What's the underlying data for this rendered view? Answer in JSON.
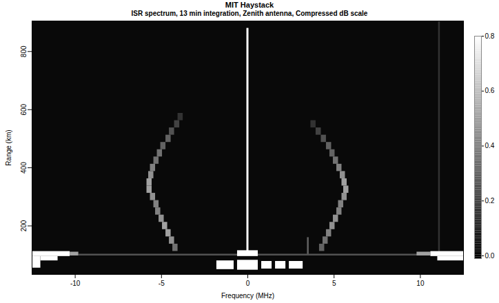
{
  "chart_data": {
    "type": "heatmap",
    "title": "MIT Haystack",
    "subtitle": "ISR spectrum, 13 min integration, Zenith antenna, Compressed dB scale",
    "x_label": "Frequency (MHz)",
    "y_label": "Range (km)",
    "xlim": [
      -12.5,
      12.5
    ],
    "ylim": [
      33,
      905
    ],
    "xticks": [
      -10,
      -5,
      0,
      5,
      10
    ],
    "yticks": [
      200,
      400,
      600,
      800
    ],
    "colorbar": {
      "range": [
        -0.01,
        0.8
      ],
      "ticks": [
        {
          "value": 0,
          "label": "0.0"
        },
        {
          "value": 0.2,
          "label": "0.2"
        },
        {
          "value": 0.4,
          "label": "0.4"
        },
        {
          "value": 0.6,
          "label": "0.6"
        },
        {
          "value": 0.8,
          "label": "0.8"
        }
      ]
    },
    "cells": [
      [
        -12.5,
        12.5,
        33,
        905,
        0.02
      ],
      [
        -0.06,
        0.06,
        100,
        880,
        0.8
      ],
      [
        3.45,
        3.55,
        100,
        160,
        0.3
      ],
      [
        11.05,
        11.15,
        100,
        905,
        0.15
      ],
      [
        -4.05,
        -3.75,
        562.5,
        587.5,
        0.15
      ],
      [
        -4.25,
        -3.95,
        537.5,
        562.5,
        0.2
      ],
      [
        -4.55,
        -4.25,
        512.5,
        537.5,
        0.25
      ],
      [
        -4.75,
        -4.45,
        487.5,
        512.5,
        0.3
      ],
      [
        -5.05,
        -4.75,
        462.5,
        487.5,
        0.3
      ],
      [
        -5.25,
        -4.95,
        437.5,
        462.5,
        0.35
      ],
      [
        -5.45,
        -5.15,
        412.5,
        437.5,
        0.35
      ],
      [
        -5.65,
        -5.35,
        387.5,
        412.5,
        0.4
      ],
      [
        -5.75,
        -5.45,
        362.5,
        387.5,
        0.45
      ],
      [
        -5.85,
        -5.55,
        337.5,
        362.5,
        0.5
      ],
      [
        -5.85,
        -5.55,
        312.5,
        337.5,
        0.5
      ],
      [
        -5.65,
        -5.35,
        287.5,
        312.5,
        0.45
      ],
      [
        -5.45,
        -5.15,
        262.5,
        287.5,
        0.4
      ],
      [
        -5.35,
        -5.05,
        237.5,
        262.5,
        0.4
      ],
      [
        -5.15,
        -4.85,
        212.5,
        237.5,
        0.45
      ],
      [
        -4.95,
        -4.65,
        187.5,
        212.5,
        0.5
      ],
      [
        -4.75,
        -4.45,
        162.5,
        187.5,
        0.5
      ],
      [
        -4.55,
        -4.25,
        137.5,
        162.5,
        0.45
      ],
      [
        -4.35,
        -4.05,
        112.5,
        137.5,
        0.35
      ],
      [
        3.65,
        3.95,
        537.5,
        562.5,
        0.15
      ],
      [
        3.95,
        4.25,
        512.5,
        537.5,
        0.2
      ],
      [
        4.25,
        4.55,
        487.5,
        512.5,
        0.25
      ],
      [
        4.55,
        4.85,
        462.5,
        487.5,
        0.3
      ],
      [
        4.75,
        5.05,
        437.5,
        462.5,
        0.3
      ],
      [
        4.95,
        5.25,
        412.5,
        437.5,
        0.35
      ],
      [
        5.15,
        5.45,
        387.5,
        412.5,
        0.4
      ],
      [
        5.35,
        5.65,
        362.5,
        387.5,
        0.45
      ],
      [
        5.45,
        5.75,
        337.5,
        362.5,
        0.5
      ],
      [
        5.55,
        5.85,
        312.5,
        337.5,
        0.5
      ],
      [
        5.45,
        5.75,
        287.5,
        312.5,
        0.45
      ],
      [
        5.25,
        5.55,
        262.5,
        287.5,
        0.4
      ],
      [
        5.15,
        5.45,
        237.5,
        262.5,
        0.4
      ],
      [
        4.95,
        5.25,
        212.5,
        237.5,
        0.45
      ],
      [
        4.75,
        5.05,
        187.5,
        212.5,
        0.45
      ],
      [
        4.55,
        4.85,
        162.5,
        187.5,
        0.4
      ],
      [
        4.35,
        4.65,
        137.5,
        162.5,
        0.35
      ],
      [
        4.15,
        4.45,
        112.5,
        137.5,
        0.3
      ],
      [
        -9.8,
        10.0,
        97,
        103,
        0.25
      ],
      [
        -12.5,
        -10.3,
        95,
        112,
        0.8
      ],
      [
        -10.3,
        -9.8,
        97,
        110,
        0.5
      ],
      [
        9.8,
        10.6,
        97,
        110,
        0.5
      ],
      [
        10.6,
        12.5,
        95,
        112,
        0.8
      ],
      [
        11.0,
        12.5,
        80,
        95,
        0.8
      ],
      [
        -12.5,
        -12.0,
        55,
        95,
        0.8
      ],
      [
        -12.0,
        -11.0,
        80,
        95,
        0.8
      ],
      [
        -0.6,
        0.6,
        95,
        115,
        0.8
      ],
      [
        -1.8,
        -0.8,
        50,
        80,
        0.8
      ],
      [
        -0.6,
        0.6,
        48,
        82,
        0.8
      ],
      [
        0.8,
        1.4,
        52,
        78,
        0.8
      ],
      [
        1.6,
        2.2,
        52,
        78,
        0.8
      ],
      [
        2.4,
        3.2,
        52,
        78,
        0.8
      ]
    ]
  }
}
